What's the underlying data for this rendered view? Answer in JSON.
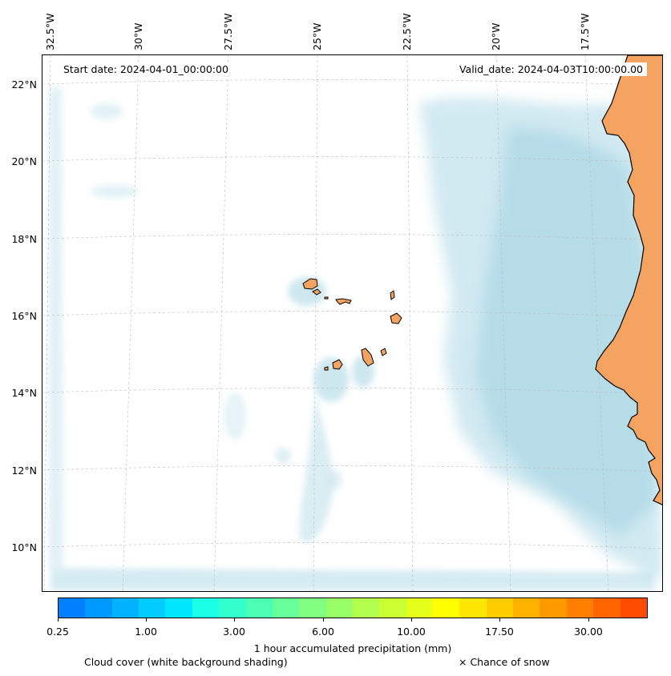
{
  "map": {
    "start_date": "Start date: 2024-04-01_00:00:00",
    "valid_date": "Valid_date: 2024-04-03T10:00:00.00",
    "longitude_labels": [
      "32.5°W",
      "30°W",
      "27.5°W",
      "25°W",
      "22.5°W",
      "20°W",
      "17.5°W"
    ],
    "latitude_labels": [
      "22°N",
      "20°N",
      "18°N",
      "16°N",
      "14°N",
      "12°N",
      "10°N"
    ],
    "land_color": "#f4a460",
    "cloud_color": "#add8e6",
    "icons": [
      "coastline",
      "cloud-shading",
      "island-group"
    ]
  },
  "colorbar": {
    "title": "1 hour accumulated precipitation (mm)",
    "colors": [
      "#007fff",
      "#0099ff",
      "#00b2ff",
      "#00ccff",
      "#00e6ff",
      "#1affe5",
      "#33ffcc",
      "#4dffb2",
      "#66ff99",
      "#80ff80",
      "#99ff66",
      "#b3ff4d",
      "#ccff33",
      "#e6ff1a",
      "#ffff00",
      "#ffe600",
      "#ffcc00",
      "#ffb200",
      "#ff9900",
      "#ff7f00",
      "#ff6600",
      "#ff4c00"
    ],
    "tick_labels": [
      "0.25",
      "1.00",
      "3.00",
      "6.00",
      "10.00",
      "17.50",
      "30.00"
    ]
  },
  "legend": {
    "cloud": "Cloud cover (white background shading)",
    "snow": "× Chance of snow"
  }
}
